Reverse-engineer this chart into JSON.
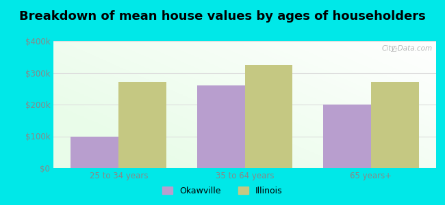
{
  "title": "Breakdown of mean house values by ages of householders",
  "categories": [
    "25 to 34 years",
    "35 to 64 years",
    "65 years+"
  ],
  "okawville_values": [
    100000,
    260000,
    200000
  ],
  "illinois_values": [
    270000,
    325000,
    270000
  ],
  "okawville_color": "#b89ece",
  "illinois_color": "#c5c882",
  "ylim": [
    0,
    400000
  ],
  "yticks": [
    0,
    100000,
    200000,
    300000,
    400000
  ],
  "ytick_labels": [
    "$0",
    "$100k",
    "$200k",
    "$300k",
    "$400k"
  ],
  "legend_labels": [
    "Okawville",
    "Illinois"
  ],
  "outer_background": "#00e8e8",
  "title_fontsize": 13,
  "bar_width": 0.38,
  "watermark": "City-Data.com",
  "tick_color": "#888888",
  "grid_color": "#dddddd"
}
